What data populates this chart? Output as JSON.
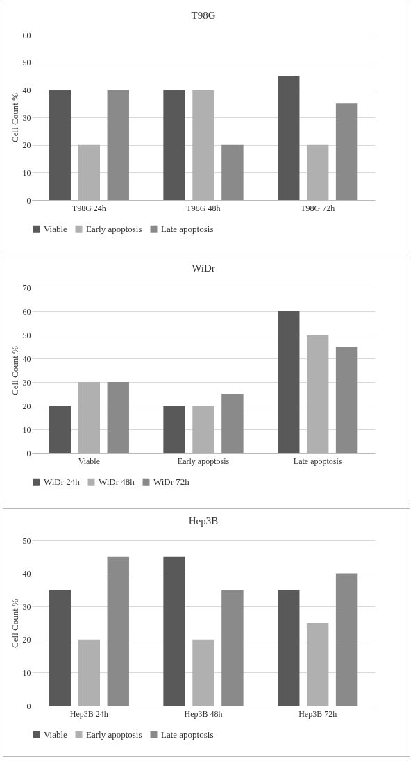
{
  "chart_data": [
    {
      "type": "bar",
      "title": "T98G",
      "ylabel": "Cell Count %",
      "categories": [
        "T98G 24h",
        "T98G 48h",
        "T98G 72h"
      ],
      "series": [
        {
          "name": "Viable",
          "color": "#595959",
          "values": [
            40,
            40,
            45
          ]
        },
        {
          "name": "Early apoptosis",
          "color": "#b0b0b0",
          "values": [
            20,
            40,
            20
          ]
        },
        {
          "name": "Late apoptosis",
          "color": "#8a8a8a",
          "values": [
            40,
            20,
            35
          ]
        }
      ],
      "ylim": [
        0,
        60
      ],
      "yticks": [
        0,
        10,
        20,
        30,
        40,
        50,
        60
      ],
      "grid": "y",
      "legend": "bottom"
    },
    {
      "type": "bar",
      "title": "WiDr",
      "ylabel": "Cell Count %",
      "categories": [
        "Viable",
        "Early apoptosis",
        "Late apoptosis"
      ],
      "series": [
        {
          "name": "WiDr 24h",
          "color": "#595959",
          "values": [
            20,
            20,
            60
          ]
        },
        {
          "name": "WiDr 48h",
          "color": "#b0b0b0",
          "values": [
            30,
            20,
            50
          ]
        },
        {
          "name": "WiDr 72h",
          "color": "#8a8a8a",
          "values": [
            30,
            25,
            45
          ]
        }
      ],
      "ylim": [
        0,
        70
      ],
      "yticks": [
        0,
        10,
        20,
        30,
        40,
        50,
        60,
        70
      ],
      "grid": "y",
      "legend": "bottom"
    },
    {
      "type": "bar",
      "title": "Hep3B",
      "ylabel": "Cell Count %",
      "categories": [
        "Hep3B 24h",
        "Hep3B 48h",
        "Hep3B 72h"
      ],
      "series": [
        {
          "name": "Viable",
          "color": "#595959",
          "values": [
            35,
            45,
            35
          ]
        },
        {
          "name": "Early apoptosis",
          "color": "#b0b0b0",
          "values": [
            20,
            20,
            25
          ]
        },
        {
          "name": "Late apoptosis",
          "color": "#8a8a8a",
          "values": [
            45,
            35,
            40
          ]
        }
      ],
      "ylim": [
        0,
        50
      ],
      "yticks": [
        0,
        10,
        20,
        30,
        40,
        50
      ],
      "grid": "y",
      "legend": "bottom"
    }
  ]
}
